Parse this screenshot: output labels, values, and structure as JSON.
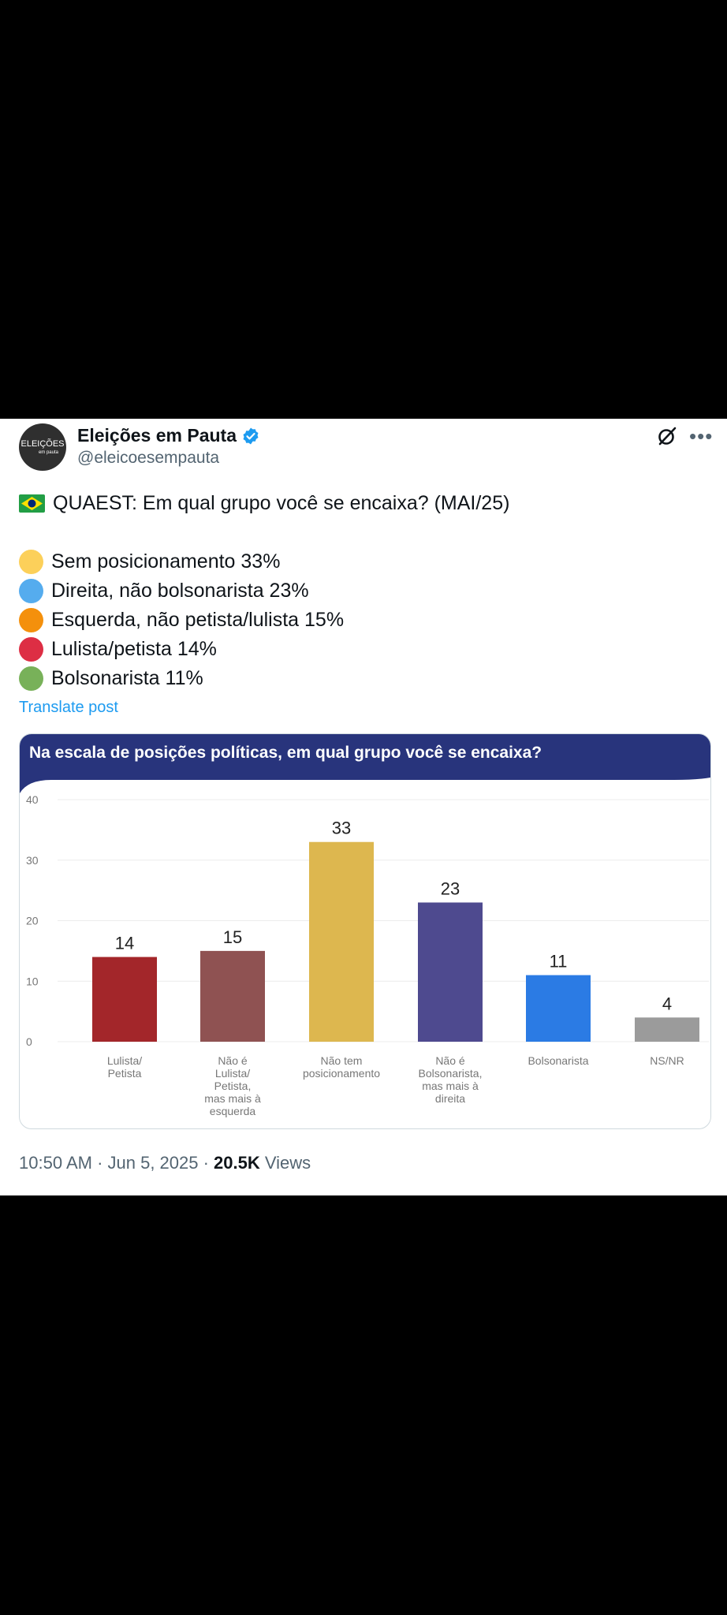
{
  "post": {
    "author_name": "Eleições em Pauta",
    "author_handle": "@eleicoesempauta",
    "avatar_text": "ELEIÇÕES",
    "avatar_subtext": "em pauta",
    "headline": "QUAEST: Em qual grupo você se encaixa? (MAI/25)",
    "lines": [
      {
        "text": "Sem posicionamento 33%",
        "color": "#fcd05a"
      },
      {
        "text": "Direita, não bolsonarista 23%",
        "color": "#55acee"
      },
      {
        "text": "Esquerda, não petista/lulista 15%",
        "color": "#f4900c"
      },
      {
        "text": "Lulista/petista 14%",
        "color": "#dd2e44"
      },
      {
        "text": "Bolsonarista 11%",
        "color": "#78b159"
      }
    ],
    "translate_label": "Translate post",
    "timestamp": "10:50 AM · Jun 5, 2025 · ",
    "views_count": "20.5K",
    "views_label": " Views",
    "verified_icon": "verified-badge-icon",
    "grok_icon": "grok-icon",
    "more_icon": "more-icon",
    "flag_icon": "brazil-flag-icon"
  },
  "card": {
    "title": "Na escala de posições políticas, em qual grupo você se encaixa?",
    "header_color": "#28347c"
  },
  "chart_data": {
    "type": "bar",
    "categories": [
      "Lulista/\nPetista",
      "Não é\nLulista/\nPetista,\nmas mais à\nesquerda",
      "Não tem\nposicionamento",
      "Não é\nBolsonarista,\nmas mais à\ndireita",
      "Bolsonarista",
      "NS/NR"
    ],
    "values": [
      14,
      15,
      33,
      23,
      11,
      4
    ],
    "colors": [
      "#a3262a",
      "#8f5252",
      "#ddb74f",
      "#4e4a8f",
      "#2b7be4",
      "#9b9b9b"
    ],
    "yticks": [
      0,
      10,
      20,
      30,
      40
    ],
    "ylim": [
      0,
      40
    ],
    "grid": true
  }
}
